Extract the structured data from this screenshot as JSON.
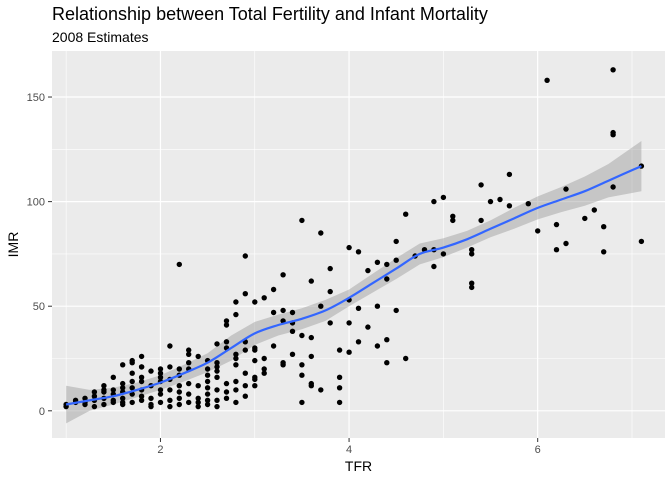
{
  "chart_data": {
    "type": "scatter",
    "title": "Relationship between Total Fertility and Infant Mortality",
    "subtitle": "2008 Estimates",
    "xlabel": "TFR",
    "ylabel": "IMR",
    "xlim": [
      0.85,
      7.35
    ],
    "ylim": [
      -13,
      172
    ],
    "xticks": [
      2,
      4,
      6
    ],
    "xtick_labels": [
      "2",
      "4",
      "6"
    ],
    "yticks": [
      0,
      50,
      100,
      150
    ],
    "ytick_labels": [
      "0",
      "50",
      "100",
      "150"
    ],
    "grid": true,
    "legend": "none",
    "colors": {
      "panel": "#ebebeb",
      "grid_major": "#ffffff",
      "points": "#000000",
      "smooth_line": "#3366ff",
      "confidence_band": "#999999"
    },
    "points": [
      [
        1.0,
        2
      ],
      [
        1.0,
        3
      ],
      [
        1.1,
        5
      ],
      [
        1.2,
        3
      ],
      [
        1.2,
        4
      ],
      [
        1.3,
        5
      ],
      [
        1.3,
        7
      ],
      [
        1.3,
        2
      ],
      [
        1.4,
        6
      ],
      [
        1.4,
        10
      ],
      [
        1.4,
        12
      ],
      [
        1.4,
        3
      ],
      [
        1.5,
        5
      ],
      [
        1.5,
        8
      ],
      [
        1.5,
        4
      ],
      [
        1.5,
        16
      ],
      [
        1.6,
        6
      ],
      [
        1.6,
        13
      ],
      [
        1.6,
        3
      ],
      [
        1.6,
        9
      ],
      [
        1.7,
        4
      ],
      [
        1.7,
        8
      ],
      [
        1.7,
        11
      ],
      [
        1.7,
        18
      ],
      [
        1.7,
        23
      ],
      [
        1.7,
        24
      ],
      [
        1.8,
        5
      ],
      [
        1.8,
        7
      ],
      [
        1.8,
        10
      ],
      [
        1.8,
        14
      ],
      [
        1.8,
        21
      ],
      [
        1.8,
        26
      ],
      [
        1.9,
        3
      ],
      [
        1.9,
        6
      ],
      [
        1.9,
        12
      ],
      [
        2.0,
        4
      ],
      [
        2.0,
        8
      ],
      [
        2.0,
        14
      ],
      [
        2.0,
        18
      ],
      [
        2.0,
        20
      ],
      [
        2.1,
        2
      ],
      [
        2.1,
        5
      ],
      [
        2.1,
        10
      ],
      [
        2.1,
        15
      ],
      [
        2.1,
        21
      ],
      [
        2.2,
        3
      ],
      [
        2.2,
        6
      ],
      [
        2.2,
        9
      ],
      [
        2.2,
        17
      ],
      [
        2.3,
        4
      ],
      [
        2.3,
        8
      ],
      [
        2.3,
        13
      ],
      [
        2.3,
        20
      ],
      [
        2.3,
        23
      ],
      [
        2.3,
        27
      ],
      [
        2.4,
        2
      ],
      [
        2.4,
        6
      ],
      [
        2.4,
        12
      ],
      [
        2.5,
        3
      ],
      [
        2.5,
        5
      ],
      [
        2.5,
        8
      ],
      [
        2.5,
        11
      ],
      [
        2.5,
        14
      ],
      [
        2.5,
        17
      ],
      [
        2.5,
        20
      ],
      [
        2.6,
        2
      ],
      [
        2.6,
        5
      ],
      [
        2.6,
        10
      ],
      [
        2.6,
        16
      ],
      [
        2.6,
        19
      ],
      [
        2.6,
        21
      ],
      [
        2.6,
        23
      ],
      [
        2.6,
        32
      ],
      [
        2.7,
        6
      ],
      [
        2.7,
        9
      ],
      [
        2.7,
        13
      ],
      [
        2.7,
        30
      ],
      [
        2.7,
        33
      ],
      [
        2.7,
        41
      ],
      [
        2.8,
        4
      ],
      [
        2.8,
        10
      ],
      [
        2.8,
        14
      ],
      [
        2.8,
        22
      ],
      [
        2.8,
        25
      ],
      [
        2.8,
        27
      ],
      [
        2.9,
        7
      ],
      [
        2.9,
        12
      ],
      [
        2.9,
        29
      ],
      [
        2.9,
        33
      ],
      [
        3.0,
        15
      ],
      [
        3.0,
        24
      ],
      [
        3.0,
        29
      ],
      [
        3.1,
        20
      ],
      [
        3.1,
        25
      ],
      [
        3.2,
        31
      ],
      [
        3.3,
        22
      ],
      [
        3.3,
        43
      ],
      [
        3.3,
        48
      ],
      [
        3.4,
        38
      ],
      [
        3.4,
        47
      ],
      [
        3.5,
        4
      ],
      [
        3.5,
        17
      ],
      [
        3.5,
        22
      ],
      [
        3.5,
        36
      ],
      [
        3.6,
        13
      ],
      [
        3.6,
        26
      ],
      [
        3.7,
        50
      ],
      [
        3.8,
        42
      ],
      [
        3.8,
        57
      ],
      [
        3.9,
        4
      ],
      [
        3.9,
        29
      ],
      [
        4.0,
        28
      ],
      [
        4.0,
        42
      ],
      [
        4.0,
        53
      ],
      [
        4.0,
        78
      ],
      [
        4.1,
        33
      ],
      [
        4.1,
        49
      ],
      [
        4.2,
        40
      ],
      [
        4.3,
        31
      ],
      [
        4.3,
        50
      ],
      [
        4.4,
        23
      ],
      [
        4.4,
        34
      ],
      [
        4.5,
        48
      ],
      [
        4.5,
        81
      ],
      [
        4.6,
        25
      ],
      [
        4.6,
        94
      ],
      [
        4.7,
        74
      ],
      [
        4.8,
        77
      ],
      [
        4.9,
        69
      ],
      [
        4.9,
        77
      ],
      [
        4.9,
        100
      ],
      [
        5.0,
        75
      ],
      [
        5.0,
        102
      ],
      [
        5.1,
        91
      ],
      [
        5.1,
        93
      ],
      [
        5.3,
        59
      ],
      [
        5.3,
        61
      ],
      [
        5.3,
        75
      ],
      [
        5.3,
        77
      ],
      [
        5.4,
        91
      ],
      [
        5.4,
        108
      ],
      [
        5.5,
        100
      ],
      [
        5.6,
        101
      ],
      [
        5.7,
        98
      ],
      [
        5.7,
        113
      ],
      [
        5.9,
        99
      ],
      [
        6.0,
        86
      ],
      [
        6.1,
        158
      ],
      [
        6.2,
        77
      ],
      [
        6.2,
        89
      ],
      [
        6.3,
        80
      ],
      [
        6.3,
        106
      ],
      [
        6.5,
        92
      ],
      [
        6.6,
        96
      ],
      [
        6.7,
        76
      ],
      [
        6.7,
        88
      ],
      [
        6.8,
        107
      ],
      [
        6.8,
        132
      ],
      [
        6.8,
        133
      ],
      [
        6.8,
        163
      ],
      [
        7.1,
        81
      ],
      [
        7.1,
        117
      ],
      [
        1.1,
        4
      ],
      [
        1.6,
        4
      ],
      [
        1.9,
        2
      ],
      [
        2.0,
        10
      ],
      [
        2.2,
        12
      ],
      [
        2.4,
        4
      ],
      [
        3.0,
        30
      ],
      [
        2.9,
        18
      ],
      [
        2.2,
        70
      ],
      [
        2.9,
        74
      ],
      [
        3.2,
        58
      ],
      [
        3.3,
        65
      ],
      [
        3.5,
        91
      ],
      [
        3.7,
        85
      ],
      [
        3.8,
        68
      ],
      [
        4.1,
        76
      ],
      [
        4.2,
        67
      ],
      [
        4.3,
        71
      ],
      [
        4.4,
        70
      ],
      [
        4.5,
        72
      ],
      [
        3.4,
        27
      ],
      [
        3.6,
        12
      ],
      [
        3.7,
        10
      ],
      [
        3.9,
        11
      ],
      [
        3.9,
        16
      ],
      [
        3.0,
        16
      ],
      [
        3.1,
        18
      ],
      [
        2.7,
        43
      ],
      [
        2.8,
        46
      ],
      [
        2.8,
        52
      ],
      [
        2.9,
        56
      ],
      [
        3.0,
        52
      ],
      [
        3.1,
        54
      ],
      [
        3.2,
        47
      ],
      [
        3.0,
        12
      ],
      [
        2.5,
        24
      ],
      [
        2.4,
        26
      ],
      [
        2.3,
        29
      ],
      [
        2.1,
        31
      ],
      [
        1.9,
        19
      ],
      [
        1.8,
        16
      ],
      [
        1.5,
        10
      ],
      [
        1.3,
        9
      ],
      [
        1.2,
        6
      ],
      [
        1.4,
        9
      ],
      [
        1.6,
        11
      ],
      [
        1.7,
        14
      ],
      [
        1.8,
        21
      ],
      [
        3.6,
        62
      ],
      [
        4.4,
        63
      ],
      [
        3.6,
        35
      ],
      [
        3.3,
        23
      ],
      [
        3.4,
        42
      ],
      [
        1.6,
        22
      ],
      [
        2.0,
        16
      ],
      [
        2.2,
        20
      ]
    ],
    "smooth": [
      [
        1.0,
        3
      ],
      [
        1.25,
        5
      ],
      [
        1.5,
        7
      ],
      [
        1.75,
        10
      ],
      [
        2.0,
        13.5
      ],
      [
        2.25,
        18
      ],
      [
        2.5,
        23
      ],
      [
        2.75,
        30
      ],
      [
        3.0,
        37
      ],
      [
        3.25,
        41
      ],
      [
        3.5,
        44
      ],
      [
        3.75,
        48
      ],
      [
        4.0,
        54
      ],
      [
        4.25,
        61
      ],
      [
        4.5,
        68
      ],
      [
        4.75,
        75
      ],
      [
        5.0,
        78
      ],
      [
        5.25,
        82
      ],
      [
        5.5,
        87
      ],
      [
        5.75,
        92
      ],
      [
        6.0,
        97
      ],
      [
        6.25,
        101
      ],
      [
        6.5,
        105
      ],
      [
        6.75,
        110
      ],
      [
        7.1,
        117
      ]
    ],
    "smooth_band_halfwidth": [
      9,
      5,
      4,
      3.5,
      3.5,
      4,
      4.5,
      6,
      5.5,
      5,
      5,
      5,
      4,
      4.5,
      5,
      5,
      4.5,
      4,
      4,
      5,
      5.5,
      6,
      7,
      8,
      12
    ]
  }
}
